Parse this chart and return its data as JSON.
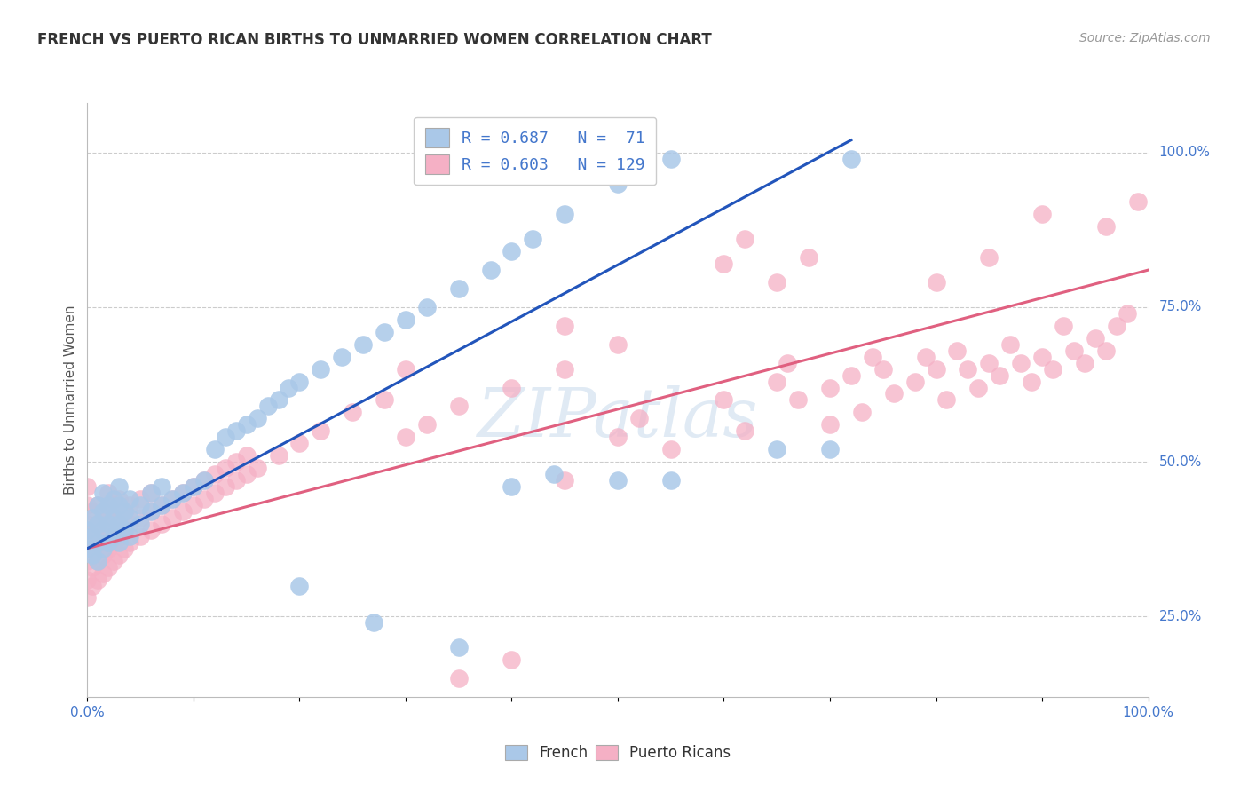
{
  "title": "FRENCH VS PUERTO RICAN BIRTHS TO UNMARRIED WOMEN CORRELATION CHART",
  "source": "Source: ZipAtlas.com",
  "ylabel": "Births to Unmarried Women",
  "french_R": 0.687,
  "french_N": 71,
  "pr_R": 0.603,
  "pr_N": 129,
  "french_color": "#aac8e8",
  "pr_color": "#f5b0c5",
  "french_line_color": "#2255bb",
  "pr_line_color": "#e06080",
  "tick_color": "#4477cc",
  "title_color": "#333333",
  "watermark": "ZIPatlas",
  "background_color": "#ffffff",
  "grid_color": "#cccccc",
  "x_min": 0.0,
  "x_max": 1.0,
  "y_min": 0.12,
  "y_max": 1.08,
  "y_ticks": [
    0.25,
    0.5,
    0.75,
    1.0
  ],
  "y_tick_labels": [
    "25.0%",
    "50.0%",
    "75.0%",
    "100.0%"
  ],
  "french_line_x0": 0.0,
  "french_line_y0": 0.36,
  "french_line_x1": 0.72,
  "french_line_y1": 1.02,
  "pr_line_x0": 0.0,
  "pr_line_y0": 0.36,
  "pr_line_x1": 1.0,
  "pr_line_y1": 0.81,
  "french_scatter": [
    [
      0.0,
      0.36
    ],
    [
      0.0,
      0.39
    ],
    [
      0.005,
      0.35
    ],
    [
      0.005,
      0.38
    ],
    [
      0.005,
      0.41
    ],
    [
      0.01,
      0.34
    ],
    [
      0.01,
      0.37
    ],
    [
      0.01,
      0.4
    ],
    [
      0.01,
      0.43
    ],
    [
      0.015,
      0.36
    ],
    [
      0.015,
      0.39
    ],
    [
      0.015,
      0.42
    ],
    [
      0.015,
      0.45
    ],
    [
      0.02,
      0.37
    ],
    [
      0.02,
      0.4
    ],
    [
      0.02,
      0.43
    ],
    [
      0.025,
      0.38
    ],
    [
      0.025,
      0.41
    ],
    [
      0.025,
      0.44
    ],
    [
      0.03,
      0.37
    ],
    [
      0.03,
      0.4
    ],
    [
      0.03,
      0.43
    ],
    [
      0.03,
      0.46
    ],
    [
      0.035,
      0.39
    ],
    [
      0.035,
      0.42
    ],
    [
      0.04,
      0.38
    ],
    [
      0.04,
      0.41
    ],
    [
      0.04,
      0.44
    ],
    [
      0.05,
      0.4
    ],
    [
      0.05,
      0.43
    ],
    [
      0.06,
      0.42
    ],
    [
      0.06,
      0.45
    ],
    [
      0.07,
      0.43
    ],
    [
      0.07,
      0.46
    ],
    [
      0.08,
      0.44
    ],
    [
      0.09,
      0.45
    ],
    [
      0.1,
      0.46
    ],
    [
      0.11,
      0.47
    ],
    [
      0.12,
      0.52
    ],
    [
      0.13,
      0.54
    ],
    [
      0.14,
      0.55
    ],
    [
      0.15,
      0.56
    ],
    [
      0.16,
      0.57
    ],
    [
      0.17,
      0.59
    ],
    [
      0.18,
      0.6
    ],
    [
      0.19,
      0.62
    ],
    [
      0.2,
      0.63
    ],
    [
      0.22,
      0.65
    ],
    [
      0.24,
      0.67
    ],
    [
      0.26,
      0.69
    ],
    [
      0.28,
      0.71
    ],
    [
      0.3,
      0.73
    ],
    [
      0.32,
      0.75
    ],
    [
      0.35,
      0.78
    ],
    [
      0.38,
      0.81
    ],
    [
      0.4,
      0.84
    ],
    [
      0.42,
      0.86
    ],
    [
      0.45,
      0.9
    ],
    [
      0.5,
      0.95
    ],
    [
      0.55,
      0.99
    ],
    [
      0.2,
      0.3
    ],
    [
      0.27,
      0.24
    ],
    [
      0.35,
      0.2
    ],
    [
      0.4,
      0.46
    ],
    [
      0.44,
      0.48
    ],
    [
      0.5,
      0.47
    ],
    [
      0.55,
      0.47
    ],
    [
      0.65,
      0.52
    ],
    [
      0.7,
      0.52
    ],
    [
      0.72,
      0.99
    ]
  ],
  "pr_scatter": [
    [
      0.0,
      0.28
    ],
    [
      0.0,
      0.31
    ],
    [
      0.0,
      0.34
    ],
    [
      0.0,
      0.37
    ],
    [
      0.0,
      0.4
    ],
    [
      0.0,
      0.43
    ],
    [
      0.0,
      0.46
    ],
    [
      0.005,
      0.3
    ],
    [
      0.005,
      0.33
    ],
    [
      0.005,
      0.36
    ],
    [
      0.005,
      0.39
    ],
    [
      0.005,
      0.42
    ],
    [
      0.01,
      0.31
    ],
    [
      0.01,
      0.34
    ],
    [
      0.01,
      0.37
    ],
    [
      0.01,
      0.4
    ],
    [
      0.01,
      0.43
    ],
    [
      0.015,
      0.32
    ],
    [
      0.015,
      0.35
    ],
    [
      0.015,
      0.38
    ],
    [
      0.015,
      0.41
    ],
    [
      0.02,
      0.33
    ],
    [
      0.02,
      0.36
    ],
    [
      0.02,
      0.39
    ],
    [
      0.02,
      0.42
    ],
    [
      0.02,
      0.45
    ],
    [
      0.025,
      0.34
    ],
    [
      0.025,
      0.37
    ],
    [
      0.025,
      0.4
    ],
    [
      0.025,
      0.43
    ],
    [
      0.03,
      0.35
    ],
    [
      0.03,
      0.38
    ],
    [
      0.03,
      0.41
    ],
    [
      0.03,
      0.44
    ],
    [
      0.035,
      0.36
    ],
    [
      0.035,
      0.39
    ],
    [
      0.035,
      0.42
    ],
    [
      0.04,
      0.37
    ],
    [
      0.04,
      0.4
    ],
    [
      0.04,
      0.43
    ],
    [
      0.05,
      0.38
    ],
    [
      0.05,
      0.41
    ],
    [
      0.05,
      0.44
    ],
    [
      0.06,
      0.39
    ],
    [
      0.06,
      0.42
    ],
    [
      0.06,
      0.45
    ],
    [
      0.07,
      0.4
    ],
    [
      0.07,
      0.43
    ],
    [
      0.08,
      0.41
    ],
    [
      0.08,
      0.44
    ],
    [
      0.09,
      0.42
    ],
    [
      0.09,
      0.45
    ],
    [
      0.1,
      0.43
    ],
    [
      0.1,
      0.46
    ],
    [
      0.11,
      0.44
    ],
    [
      0.11,
      0.47
    ],
    [
      0.12,
      0.45
    ],
    [
      0.12,
      0.48
    ],
    [
      0.13,
      0.46
    ],
    [
      0.13,
      0.49
    ],
    [
      0.14,
      0.47
    ],
    [
      0.14,
      0.5
    ],
    [
      0.15,
      0.48
    ],
    [
      0.15,
      0.51
    ],
    [
      0.16,
      0.49
    ],
    [
      0.18,
      0.51
    ],
    [
      0.2,
      0.53
    ],
    [
      0.22,
      0.55
    ],
    [
      0.25,
      0.58
    ],
    [
      0.28,
      0.6
    ],
    [
      0.3,
      0.54
    ],
    [
      0.32,
      0.56
    ],
    [
      0.35,
      0.59
    ],
    [
      0.4,
      0.62
    ],
    [
      0.45,
      0.65
    ],
    [
      0.5,
      0.54
    ],
    [
      0.52,
      0.57
    ],
    [
      0.55,
      0.52
    ],
    [
      0.6,
      0.6
    ],
    [
      0.62,
      0.55
    ],
    [
      0.65,
      0.63
    ],
    [
      0.66,
      0.66
    ],
    [
      0.67,
      0.6
    ],
    [
      0.7,
      0.56
    ],
    [
      0.7,
      0.62
    ],
    [
      0.72,
      0.64
    ],
    [
      0.73,
      0.58
    ],
    [
      0.74,
      0.67
    ],
    [
      0.75,
      0.65
    ],
    [
      0.76,
      0.61
    ],
    [
      0.78,
      0.63
    ],
    [
      0.79,
      0.67
    ],
    [
      0.8,
      0.65
    ],
    [
      0.81,
      0.6
    ],
    [
      0.82,
      0.68
    ],
    [
      0.83,
      0.65
    ],
    [
      0.84,
      0.62
    ],
    [
      0.85,
      0.66
    ],
    [
      0.86,
      0.64
    ],
    [
      0.87,
      0.69
    ],
    [
      0.88,
      0.66
    ],
    [
      0.89,
      0.63
    ],
    [
      0.9,
      0.67
    ],
    [
      0.91,
      0.65
    ],
    [
      0.92,
      0.72
    ],
    [
      0.93,
      0.68
    ],
    [
      0.94,
      0.66
    ],
    [
      0.95,
      0.7
    ],
    [
      0.96,
      0.68
    ],
    [
      0.97,
      0.72
    ],
    [
      0.98,
      0.74
    ],
    [
      0.6,
      0.82
    ],
    [
      0.62,
      0.86
    ],
    [
      0.65,
      0.79
    ],
    [
      0.68,
      0.83
    ],
    [
      0.8,
      0.79
    ],
    [
      0.85,
      0.83
    ],
    [
      0.9,
      0.9
    ],
    [
      0.96,
      0.88
    ],
    [
      0.99,
      0.92
    ],
    [
      0.45,
      0.72
    ],
    [
      0.5,
      0.69
    ],
    [
      0.3,
      0.65
    ],
    [
      0.35,
      0.15
    ],
    [
      0.4,
      0.18
    ],
    [
      0.45,
      0.47
    ]
  ]
}
